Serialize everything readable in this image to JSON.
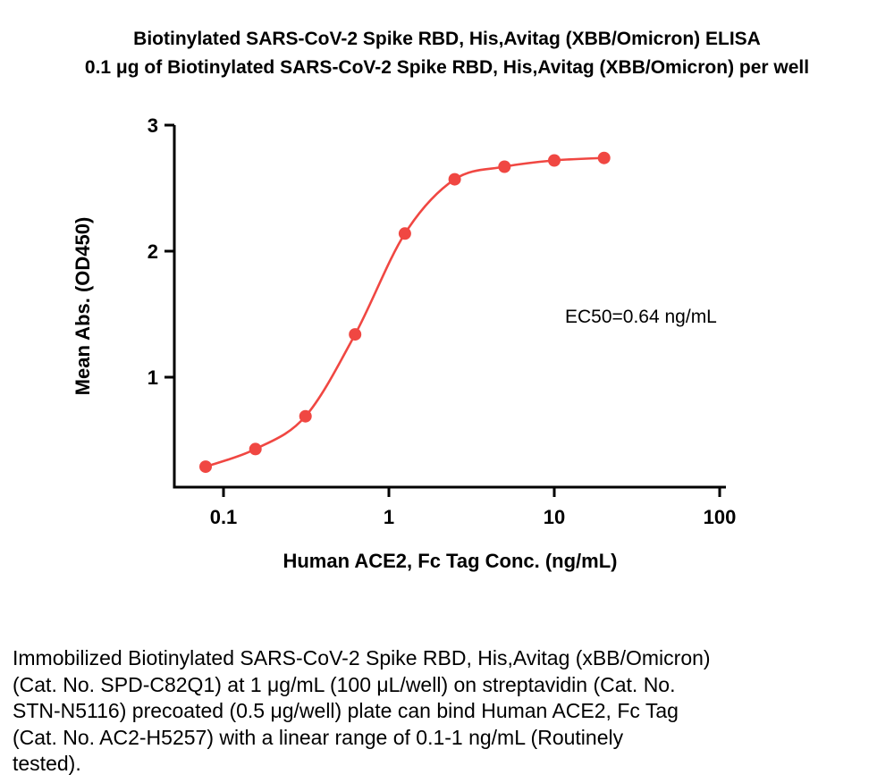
{
  "caption_lines": [
    "Immobilized Biotinylated SARS-CoV-2 Spike RBD, His,Avitag (xBB/Omicron)",
    "(Cat. No. SPD-C82Q1) at 1 μg/mL (100 μL/well) on streptavidin (Cat. No.",
    "STN-N5116) precoated (0.5 μg/well) plate can bind Human ACE2, Fc Tag",
    "(Cat. No. AC2-H5257) with a linear range of 0.1-1 ng/mL (Routinely",
    "tested)."
  ],
  "chart_data": {
    "type": "scatter",
    "title": "Biotinylated SARS-CoV-2 Spike RBD, His,Avitag (XBB/Omicron) ELISA",
    "subtitle": "0.1 μg of Biotinylated SARS-CoV-2 Spike RBD, His,Avitag (XBB/Omicron) per well",
    "xlabel": "Human ACE2, Fc Tag Conc. (ng/mL)",
    "ylabel": "Mean Abs. (OD450)",
    "x_scale": "log10",
    "x": [
      0.078,
      0.156,
      0.313,
      0.625,
      1.25,
      2.5,
      5,
      10,
      20
    ],
    "y": [
      0.29,
      0.43,
      0.69,
      1.34,
      2.14,
      2.57,
      2.67,
      2.72,
      2.74
    ],
    "x_tick_values": [
      0.1,
      1,
      10,
      100
    ],
    "x_tick_labels": [
      "0.1",
      "1",
      "10",
      "100"
    ],
    "y_tick_values": [
      1,
      2,
      3
    ],
    "y_tick_labels": [
      "1",
      "2",
      "3"
    ],
    "xlim": [
      0.05,
      110
    ],
    "ylim": [
      0.13,
      3
    ],
    "grid": false,
    "legend": "none",
    "annotation": "EC50=0.64 ng/mL",
    "ec50_ng_ml": 0.64,
    "marker_color": "#F04742",
    "line_color": "#F04742",
    "axis_color": "#000000"
  }
}
